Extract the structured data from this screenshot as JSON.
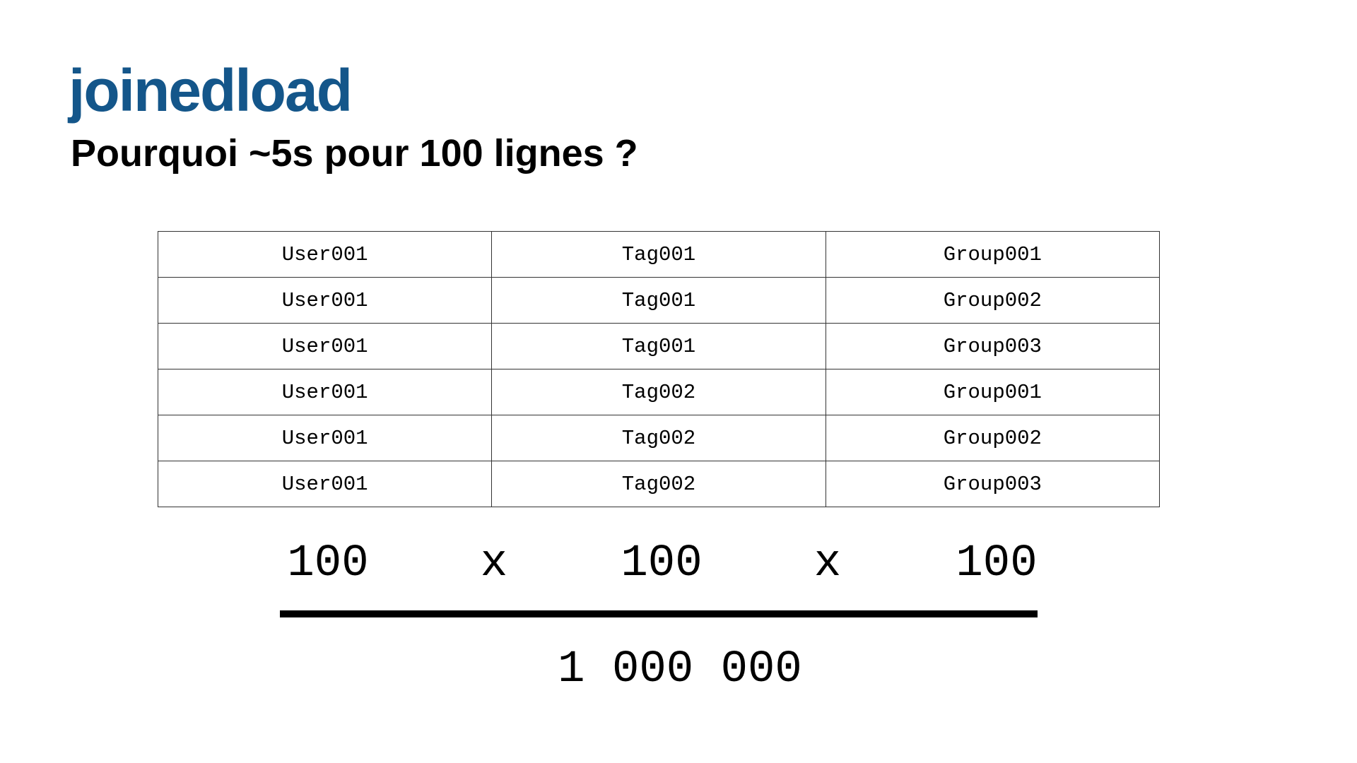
{
  "header": {
    "title": "joinedload",
    "subtitle": "Pourquoi ~5s pour 100 lignes ?"
  },
  "table": {
    "rows": [
      [
        "User001",
        "Tag001",
        "Group001"
      ],
      [
        "User001",
        "Tag001",
        "Group002"
      ],
      [
        "User001",
        "Tag001",
        "Group003"
      ],
      [
        "User001",
        "Tag002",
        "Group001"
      ],
      [
        "User001",
        "Tag002",
        "Group002"
      ],
      [
        "User001",
        "Tag002",
        "Group003"
      ]
    ]
  },
  "formula": {
    "terms": [
      "100",
      "x",
      "100",
      "x",
      "100"
    ],
    "result": "1 000 000"
  }
}
